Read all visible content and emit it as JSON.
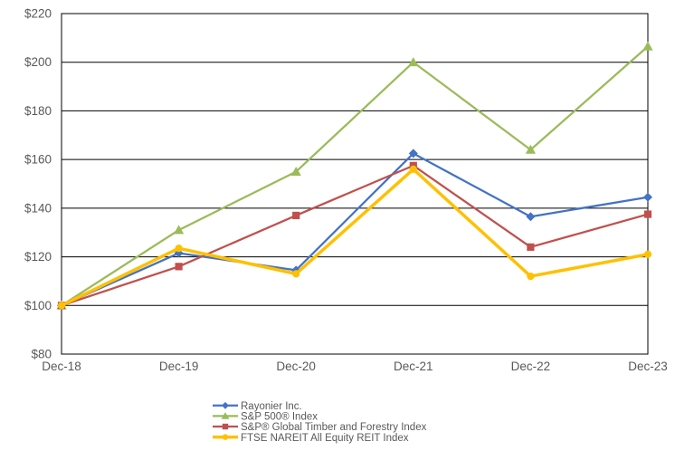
{
  "chart_data": {
    "type": "line",
    "title": "",
    "categories": [
      "Dec-18",
      "Dec-19",
      "Dec-20",
      "Dec-21",
      "Dec-22",
      "Dec-23"
    ],
    "series": [
      {
        "name": "Rayonier Inc.",
        "color": "#4472C4",
        "marker": "diamond",
        "line_width": 2.25,
        "values": [
          100,
          121.5,
          114.5,
          162.5,
          136.5,
          144.5
        ]
      },
      {
        "name": "S&P 500® Index",
        "color": "#9BBB59",
        "marker": "triangle",
        "line_width": 2.25,
        "values": [
          100,
          131,
          155,
          200,
          164,
          206.5
        ]
      },
      {
        "name": "S&P® Global Timber and Forestry Index",
        "color": "#C0504D",
        "marker": "square",
        "line_width": 2.25,
        "values": [
          100,
          116,
          137,
          157.5,
          124,
          137.5
        ]
      },
      {
        "name": "FTSE NAREIT All Equity REIT Index",
        "color": "#FFC000",
        "marker": "circle",
        "line_width": 3.5,
        "values": [
          100,
          123.5,
          113,
          156,
          112,
          121
        ]
      }
    ],
    "ylim": [
      80,
      220
    ],
    "ytick_step": 20,
    "yticks": [
      {
        "label": "$220",
        "value": 220
      },
      {
        "label": "$200",
        "value": 200
      },
      {
        "label": "$180",
        "value": 180
      },
      {
        "label": "$160",
        "value": 160
      },
      {
        "label": "$140",
        "value": 140
      },
      {
        "label": "$120",
        "value": 120
      },
      {
        "label": "$100",
        "value": 100
      },
      {
        "label": "$80",
        "value": 80
      }
    ],
    "grid": "horizontal",
    "grid_color": "#000000",
    "border_color": "#000000",
    "axis_text_color": "#595959",
    "legend_text_color": "#595959",
    "legend_position": "bottom-center",
    "xlabel": "",
    "ylabel": ""
  }
}
